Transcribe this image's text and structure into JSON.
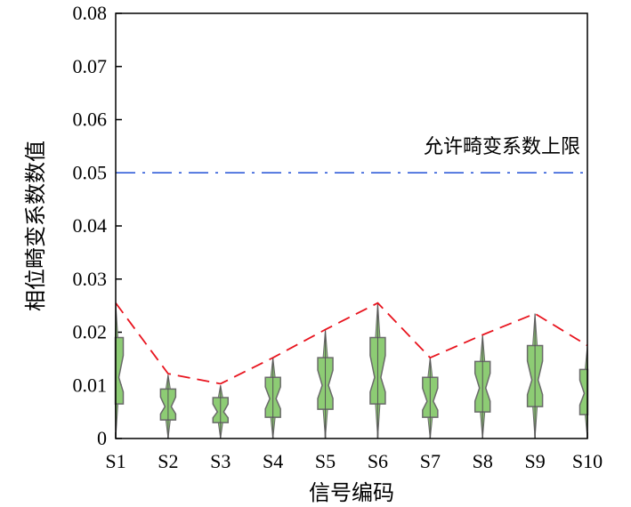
{
  "chart_data": {
    "type": "box",
    "xlabel": "信号编码",
    "ylabel": "相位畸变系数数值",
    "ylim": [
      0,
      0.08
    ],
    "yticks": [
      "0",
      "0.01",
      "0.02",
      "0.03",
      "0.04",
      "0.05",
      "0.06",
      "0.07",
      "0.08"
    ],
    "categories": [
      "S1",
      "S2",
      "S3",
      "S4",
      "S5",
      "S6",
      "S7",
      "S8",
      "S9",
      "S10"
    ],
    "series": [
      {
        "min": [
          0.0,
          0.0,
          0.0,
          0.0,
          0.0,
          0.0,
          0.0,
          0.0,
          0.0,
          0.0
        ],
        "q1": [
          0.0065,
          0.0035,
          0.003,
          0.004,
          0.0055,
          0.0065,
          0.004,
          0.005,
          0.006,
          0.0045
        ],
        "median": [
          0.0115,
          0.006,
          0.005,
          0.0075,
          0.01,
          0.0115,
          0.007,
          0.0095,
          0.011,
          0.0085
        ],
        "q3": [
          0.019,
          0.0093,
          0.0077,
          0.0115,
          0.0152,
          0.019,
          0.0115,
          0.0145,
          0.0175,
          0.013
        ],
        "max": [
          0.0255,
          0.012,
          0.01,
          0.0152,
          0.0205,
          0.0255,
          0.0152,
          0.0195,
          0.0235,
          0.0175
        ]
      }
    ],
    "max_line": [
      0.0255,
      0.0122,
      0.0103,
      0.0152,
      0.0205,
      0.0255,
      0.0152,
      0.0195,
      0.0235,
      0.0175
    ],
    "reference": {
      "value": 0.05,
      "label": "允许畸变系数上限"
    },
    "colors": {
      "box_fill": "#8dcc74",
      "box_stroke": "#6a6a6a",
      "max_line": "#e8141e",
      "reference": "#1f4fd6"
    },
    "grid": false
  }
}
